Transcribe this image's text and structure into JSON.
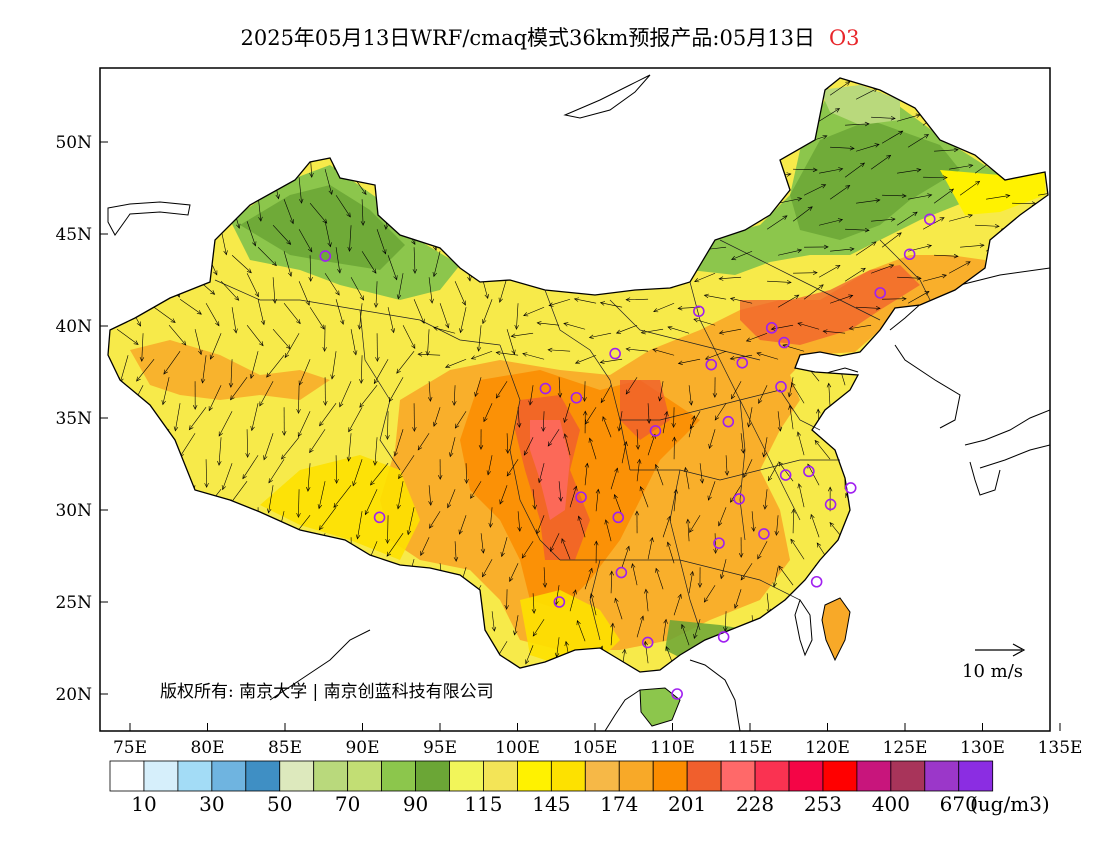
{
  "title": {
    "main": "2025年05月13日WRF/cmaq模式36km预报产品:05月13日",
    "species": "O3",
    "species_color": "#e8262b"
  },
  "axes": {
    "lat_ticks": [
      "50N",
      "45N",
      "40N",
      "35N",
      "30N",
      "25N",
      "20N"
    ],
    "lon_ticks": [
      "75E",
      "80E",
      "85E",
      "90E",
      "95E",
      "100E",
      "105E",
      "110E",
      "115E",
      "120E",
      "125E",
      "130E",
      "135E"
    ]
  },
  "copyright": "版权所有: 南京大学 | 南京创蓝科技有限公司",
  "wind_legend": {
    "label": "10 m/s"
  },
  "colorbar": {
    "colors": [
      "#ffffff",
      "#d6effb",
      "#a3dcf6",
      "#6fb4e0",
      "#3f8fc4",
      "#dde9bd",
      "#b9d97c",
      "#c2de74",
      "#8cc64c",
      "#6ba636",
      "#f2f55a",
      "#f3e457",
      "#fff200",
      "#fde100",
      "#f6b847",
      "#f8a928",
      "#fb8c00",
      "#f05f2d",
      "#ff6969",
      "#fa3251",
      "#f40546",
      "#ff0000",
      "#c8157c",
      "#a8345a",
      "#9b37c9",
      "#8b2de2"
    ],
    "labels": [
      "10",
      "30",
      "50",
      "70",
      "90",
      "115",
      "145",
      "174",
      "201",
      "228",
      "253",
      "400",
      "670"
    ],
    "unit": "(ug/m3)"
  },
  "stations": [
    [
      87.6,
      43.8
    ],
    [
      91.1,
      29.6
    ],
    [
      101.8,
      36.6
    ],
    [
      103.8,
      36.1
    ],
    [
      104.1,
      30.7
    ],
    [
      102.7,
      25.0
    ],
    [
      106.5,
      29.6
    ],
    [
      106.7,
      26.6
    ],
    [
      108.4,
      22.8
    ],
    [
      110.3,
      20.0
    ],
    [
      106.3,
      38.5
    ],
    [
      108.9,
      34.3
    ],
    [
      111.7,
      40.8
    ],
    [
      112.5,
      37.9
    ],
    [
      114.5,
      38.0
    ],
    [
      116.4,
      39.9
    ],
    [
      117.2,
      39.1
    ],
    [
      113.6,
      34.8
    ],
    [
      117.0,
      36.7
    ],
    [
      117.3,
      31.9
    ],
    [
      118.8,
      32.1
    ],
    [
      120.2,
      30.3
    ],
    [
      121.5,
      31.2
    ],
    [
      114.3,
      30.6
    ],
    [
      113.0,
      28.2
    ],
    [
      115.9,
      28.7
    ],
    [
      119.3,
      26.1
    ],
    [
      113.3,
      23.1
    ],
    [
      123.4,
      41.8
    ],
    [
      125.3,
      43.9
    ],
    [
      126.6,
      45.8
    ]
  ]
}
